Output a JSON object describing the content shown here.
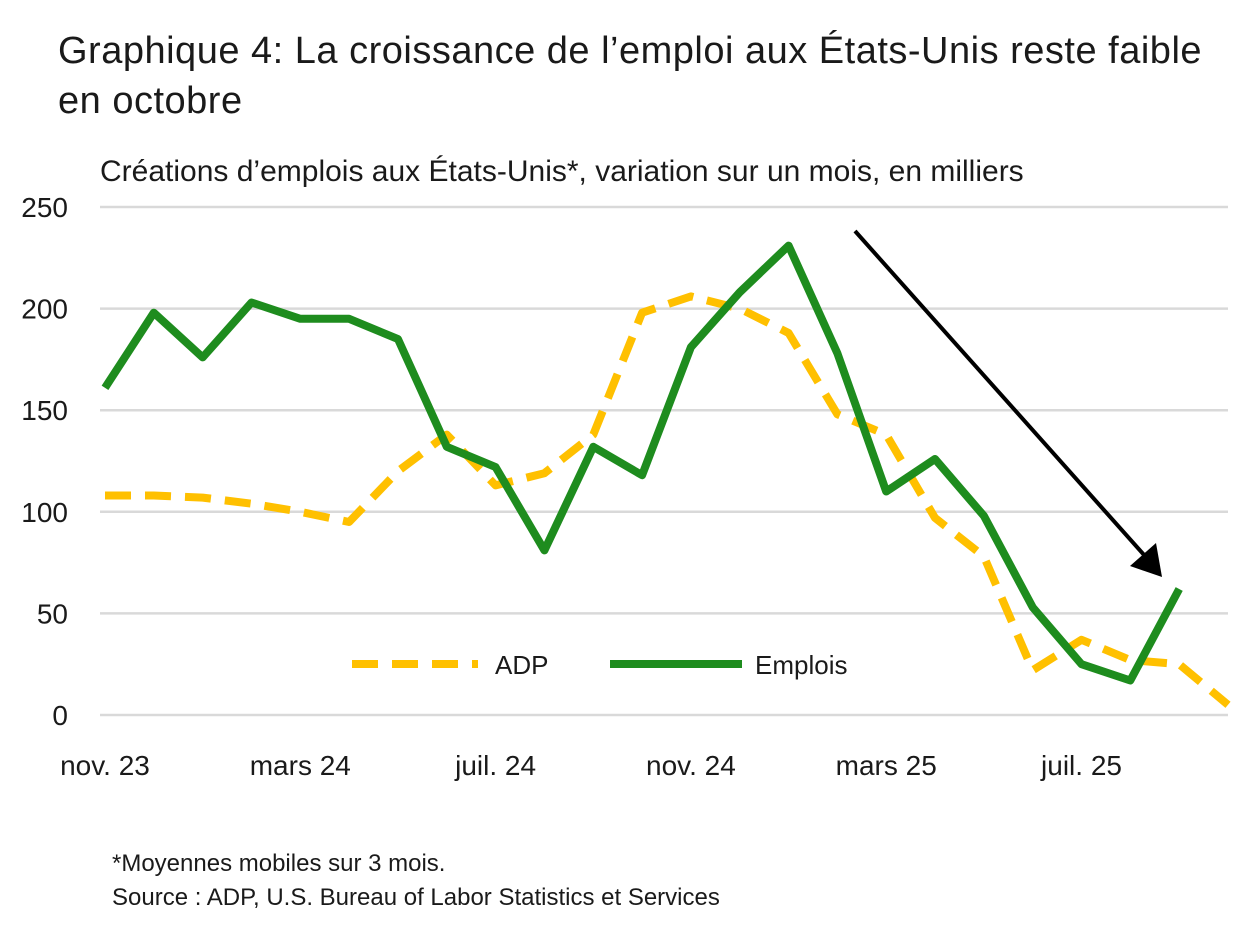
{
  "title": "Graphique 4: La croissance de l’emploi aux États-Unis reste faible en octobre",
  "subtitle": "Créations d’emplois aux États-Unis*, variation sur un mois, en milliers",
  "footnote": "*Moyennes mobiles sur 3 mois.",
  "source": "Source : ADP, U.S. Bureau of Labor Statistics et Services",
  "colors": {
    "adp": "#ffc000",
    "emplois": "#1e8c1e",
    "grid": "#d9d9d9",
    "arrow": "#000000"
  },
  "chart_data": {
    "type": "line",
    "x": [
      "nov. 23",
      "déc. 23",
      "janv. 24",
      "févr. 24",
      "mars 24",
      "avr. 24",
      "mai 24",
      "juin 24",
      "juil. 24",
      "août 24",
      "sept. 24",
      "oct. 24",
      "nov. 24",
      "déc. 24",
      "janv. 25",
      "févr. 25",
      "mars 25",
      "avr. 25",
      "mai 25",
      "juin 25",
      "juil. 25",
      "août 25",
      "sept. 25",
      "oct. 25"
    ],
    "x_tick_labels": [
      "nov. 23",
      "mars 24",
      "juil. 24",
      "nov. 24",
      "mars 25",
      "juil. 25"
    ],
    "y_ticks": [
      0,
      50,
      100,
      150,
      200,
      250
    ],
    "ylim": [
      0,
      250
    ],
    "grid": true,
    "legend_position": "bottom-center",
    "series": [
      {
        "name": "ADP",
        "style": "dashed",
        "values": [
          108,
          108,
          107,
          104,
          100,
          95,
          120,
          138,
          113,
          119,
          138,
          198,
          206,
          200,
          188,
          148,
          138,
          97,
          78,
          22,
          37,
          27,
          25,
          5
        ]
      },
      {
        "name": "Emplois",
        "style": "solid",
        "values": [
          161,
          198,
          176,
          203,
          195,
          195,
          185,
          132,
          122,
          81,
          132,
          118,
          181,
          208,
          231,
          178,
          110,
          126,
          98,
          53,
          25,
          17,
          62,
          null
        ]
      }
    ],
    "annotations": [
      {
        "type": "arrow",
        "label": "",
        "direction": "down-right"
      }
    ]
  }
}
